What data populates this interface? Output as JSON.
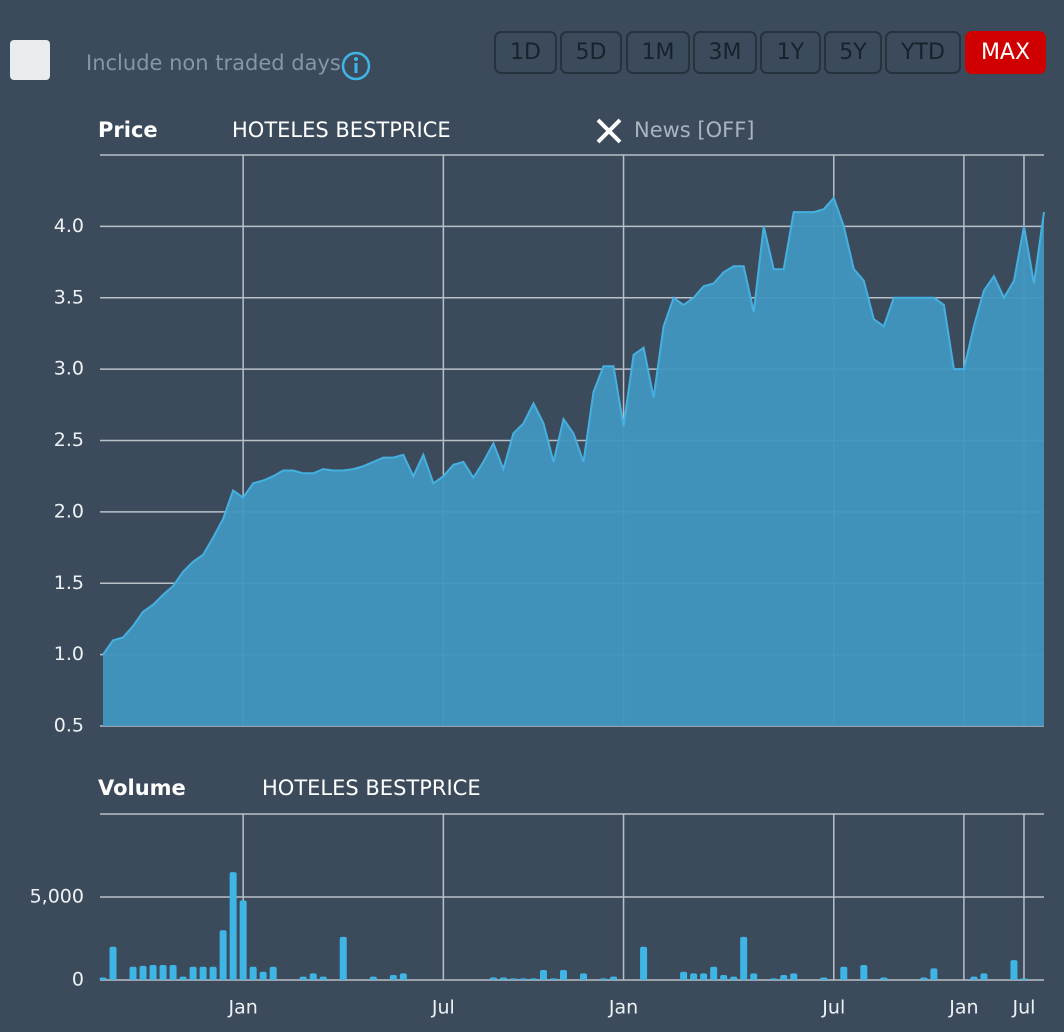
{
  "toolbar": {
    "checkbox_label": "Include non traded days",
    "ranges": [
      {
        "label": "1D",
        "active": false
      },
      {
        "label": "5D",
        "active": false
      },
      {
        "label": "1M",
        "active": false
      },
      {
        "label": "3M",
        "active": false
      },
      {
        "label": "1Y",
        "active": false
      },
      {
        "label": "5Y",
        "active": false
      },
      {
        "label": "YTD",
        "active": false
      },
      {
        "label": "MAX",
        "active": true
      }
    ],
    "news": "News [OFF]"
  },
  "chart_data": [
    {
      "type": "area",
      "title": "Price",
      "subtitle": "HOTELES BESTPRICE",
      "color": "#45b0e0",
      "categories": [
        null,
        null,
        null,
        null,
        null,
        null,
        null,
        null,
        null,
        null,
        null,
        null,
        null,
        null,
        "Jan",
        null,
        null,
        null,
        null,
        null,
        null,
        null,
        null,
        null,
        null,
        null,
        null,
        null,
        null,
        null,
        null,
        null,
        null,
        null,
        "Jul",
        null,
        null,
        null,
        null,
        null,
        null,
        null,
        null,
        null,
        null,
        null,
        null,
        null,
        null,
        null,
        null,
        null,
        "Jan",
        null,
        null,
        null,
        null,
        null,
        null,
        null,
        null,
        null,
        null,
        null,
        null,
        null,
        null,
        null,
        null,
        null,
        null,
        null,
        null,
        "Jul",
        null,
        null,
        null,
        null,
        null,
        null,
        null,
        null,
        null,
        null,
        null,
        null,
        "Jan",
        null,
        null,
        null,
        null,
        null,
        "Jul",
        null,
        null
      ],
      "values": [
        1.0,
        1.1,
        1.12,
        1.2,
        1.3,
        1.35,
        1.42,
        1.48,
        1.58,
        1.65,
        1.7,
        1.82,
        1.95,
        2.15,
        2.1,
        2.2,
        2.22,
        2.25,
        2.29,
        2.29,
        2.27,
        2.27,
        2.3,
        2.29,
        2.29,
        2.3,
        2.32,
        2.35,
        2.38,
        2.38,
        2.4,
        2.25,
        2.4,
        2.2,
        2.25,
        2.33,
        2.35,
        2.24,
        2.35,
        2.48,
        2.3,
        2.55,
        2.62,
        2.76,
        2.62,
        2.35,
        2.65,
        2.55,
        2.35,
        2.84,
        3.02,
        3.02,
        2.6,
        3.1,
        3.15,
        2.8,
        3.3,
        3.5,
        3.45,
        3.5,
        3.58,
        3.6,
        3.68,
        3.72,
        3.72,
        3.4,
        4.0,
        3.7,
        3.7,
        4.1,
        4.1,
        4.1,
        4.12,
        4.2,
        4.0,
        3.7,
        3.62,
        3.35,
        3.3,
        3.5,
        3.5,
        3.5,
        3.5,
        3.5,
        3.45,
        3.0,
        3.0,
        3.3,
        3.55,
        3.65,
        3.5,
        3.62,
        4.0,
        3.6,
        4.1
      ],
      "ylim": [
        0.5,
        4.5
      ],
      "yticks": [
        0.5,
        {
          "value": 1,
          "label": "1.0"
        },
        1.5,
        {
          "value": 2,
          "label": "2.0"
        },
        2.5,
        {
          "value": 3,
          "label": "3.0"
        },
        3.5,
        {
          "value": 4,
          "label": "4.0"
        }
      ],
      "grid": true
    },
    {
      "type": "bar",
      "title": "Volume",
      "subtitle": "HOTELES BESTPRICE",
      "color": "#3fb5e6",
      "categories": [
        null,
        null,
        null,
        null,
        null,
        null,
        null,
        null,
        null,
        null,
        null,
        null,
        null,
        null,
        "Jan",
        null,
        null,
        null,
        null,
        null,
        null,
        null,
        null,
        null,
        null,
        null,
        null,
        null,
        null,
        null,
        null,
        null,
        null,
        null,
        "Jul",
        null,
        null,
        null,
        null,
        null,
        null,
        null,
        null,
        null,
        null,
        null,
        null,
        null,
        null,
        null,
        null,
        null,
        "Jan",
        null,
        null,
        null,
        null,
        null,
        null,
        null,
        null,
        null,
        null,
        null,
        null,
        null,
        null,
        null,
        null,
        null,
        null,
        null,
        null,
        "Jul",
        null,
        null,
        null,
        null,
        null,
        null,
        null,
        null,
        null,
        null,
        null,
        null,
        "Jan",
        null,
        null,
        null,
        null,
        null,
        "Jul",
        null,
        null
      ],
      "values": [
        150,
        2000,
        0,
        800,
        850,
        900,
        900,
        900,
        200,
        800,
        800,
        800,
        3000,
        6500,
        4800,
        800,
        500,
        800,
        0,
        0,
        200,
        400,
        200,
        0,
        2600,
        0,
        0,
        200,
        0,
        300,
        400,
        0,
        0,
        0,
        0,
        0,
        0,
        0,
        0,
        150,
        150,
        100,
        100,
        100,
        600,
        100,
        600,
        0,
        400,
        0,
        100,
        200,
        0,
        0,
        2000,
        0,
        0,
        0,
        500,
        400,
        400,
        800,
        300,
        200,
        2600,
        400,
        0,
        100,
        300,
        400,
        0,
        0,
        150,
        0,
        800,
        0,
        900,
        0,
        150,
        0,
        0,
        0,
        150,
        700,
        0,
        0,
        0,
        200,
        400,
        0,
        0,
        1200,
        100,
        0,
        0
      ],
      "ylim": [
        0,
        10000
      ],
      "yticks": [
        0,
        {
          "value": 5000,
          "label": "5,000"
        }
      ],
      "grid": true
    }
  ]
}
